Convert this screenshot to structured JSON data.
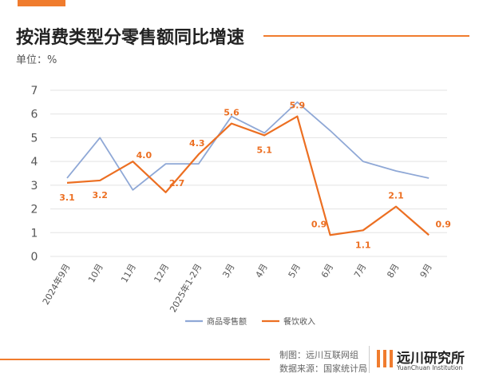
{
  "header": {
    "title": "按消费类型分零售额同比增速",
    "unit_label": "单位：%"
  },
  "chart_data": {
    "type": "line",
    "title": "按消费类型分零售额同比增速",
    "ylabel": "单位：%",
    "xlabel": "",
    "ylim": [
      0,
      7
    ],
    "yticks": [
      0,
      1,
      2,
      3,
      4,
      5,
      6,
      7
    ],
    "grid": true,
    "legend_position": "bottom",
    "categories": [
      "2024年9月",
      "10月",
      "11月",
      "12月",
      "2025年1-2月",
      "3月",
      "4月",
      "5月",
      "6月",
      "7月",
      "8月",
      "9月"
    ],
    "series": [
      {
        "name": "商品零售额",
        "color": "#8fa8d6",
        "values": [
          3.3,
          5.0,
          2.8,
          3.9,
          3.9,
          5.9,
          5.2,
          6.5,
          5.3,
          4.0,
          3.6,
          3.3
        ],
        "show_labels": false
      },
      {
        "name": "餐饮收入",
        "color": "#ec6f22",
        "values": [
          3.1,
          3.2,
          4.0,
          2.7,
          4.3,
          5.6,
          5.1,
          5.9,
          0.9,
          1.1,
          2.1,
          0.9
        ],
        "show_labels": true,
        "labels": [
          "3.1",
          "3.2",
          "4.0",
          "2.7",
          "4.3",
          "5.6",
          "5.1",
          "5.9",
          "0.9",
          "1.1",
          "2.1",
          "0.9"
        ]
      }
    ]
  },
  "footer": {
    "maker": "制图：远川互联网组",
    "source": "数据来源：国家统计局",
    "brand_cn": "远川研究所",
    "brand_en": "YuanChuan Institution"
  },
  "colors": {
    "accent": "#f07c2e",
    "grid": "#e3e3e3",
    "axis_text": "#555555"
  }
}
